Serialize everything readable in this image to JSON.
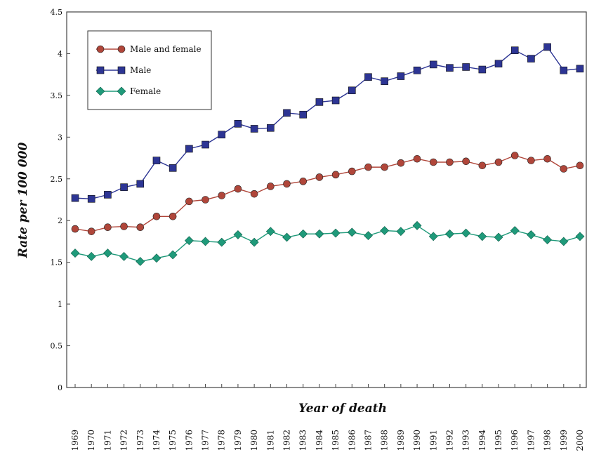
{
  "chart_data": {
    "type": "line",
    "xlabel": "Year of death",
    "ylabel": "Rate per 100 000",
    "ylim": [
      0,
      4.5
    ],
    "yticks": [
      "0",
      "0.5",
      "1",
      "1.5",
      "2",
      "2.5",
      "3",
      "3.5",
      "4",
      "4.5"
    ],
    "categories": [
      "1969",
      "1970",
      "1971",
      "1972",
      "1973",
      "1974",
      "1975",
      "1976",
      "1977",
      "1978",
      "1979",
      "1980",
      "1981",
      "1982",
      "1983",
      "1984",
      "1985",
      "1986",
      "1987",
      "1988",
      "1989",
      "1990",
      "1991",
      "1992",
      "1993",
      "1994",
      "1995",
      "1996",
      "1997",
      "1998",
      "1999",
      "2000"
    ],
    "legend_position": "top-left",
    "series": [
      {
        "name": "Male and female",
        "color": "#b0463a",
        "marker": "circle",
        "values": [
          1.9,
          1.87,
          1.92,
          1.93,
          1.92,
          2.05,
          2.05,
          2.23,
          2.25,
          2.3,
          2.38,
          2.32,
          2.41,
          2.44,
          2.47,
          2.52,
          2.55,
          2.59,
          2.64,
          2.64,
          2.69,
          2.74,
          2.7,
          2.7,
          2.71,
          2.66,
          2.7,
          2.78,
          2.72,
          2.74,
          2.62,
          2.66
        ]
      },
      {
        "name": "Male",
        "color": "#2d3594",
        "marker": "square",
        "values": [
          2.27,
          2.26,
          2.31,
          2.4,
          2.44,
          2.72,
          2.63,
          2.86,
          2.91,
          3.03,
          3.16,
          3.1,
          3.11,
          3.29,
          3.27,
          3.42,
          3.44,
          3.56,
          3.72,
          3.67,
          3.73,
          3.8,
          3.87,
          3.83,
          3.84,
          3.81,
          3.88,
          4.04,
          3.94,
          4.08,
          3.8,
          3.82
        ]
      },
      {
        "name": "Female",
        "color": "#1f9a7a",
        "marker": "diamond",
        "values": [
          1.61,
          1.57,
          1.61,
          1.57,
          1.51,
          1.55,
          1.59,
          1.76,
          1.75,
          1.74,
          1.83,
          1.74,
          1.87,
          1.8,
          1.84,
          1.84,
          1.85,
          1.86,
          1.82,
          1.88,
          1.87,
          1.94,
          1.81,
          1.84,
          1.85,
          1.81,
          1.8,
          1.88,
          1.83,
          1.77,
          1.75,
          1.81
        ]
      }
    ]
  }
}
